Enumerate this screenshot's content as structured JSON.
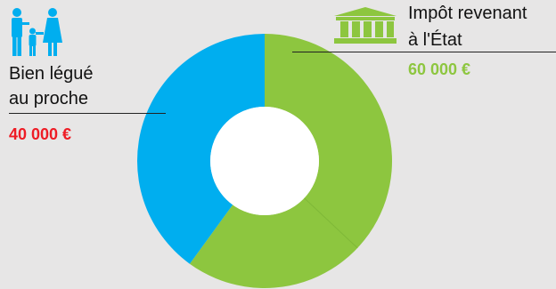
{
  "chart_data": {
    "type": "pie",
    "style": "donut",
    "title": "",
    "slices": [
      {
        "label": "Impôt revenant à l'État",
        "value": 60000,
        "display": "60 000 €",
        "color": "#8dc63f"
      },
      {
        "label": "Bien légué au proche",
        "value": 40000,
        "display": "40 000 €",
        "color": "#00aeef"
      }
    ],
    "labels": {
      "state": {
        "line1": "Impôt revenant",
        "line2": "à l'État",
        "value": "60 000 €",
        "value_color": "#8dc63f"
      },
      "relative": {
        "line1": "Bien légué",
        "line2": "au proche",
        "value": "40 000 €",
        "value_color": "#ee1c25"
      }
    }
  },
  "colors": {
    "background": "#e7e6e6",
    "state_green": "#8dc63f",
    "relative_blue": "#00aeef",
    "relative_value_red": "#ee1c25",
    "hole": "#ffffff"
  },
  "icons": {
    "state": "government-building-icon",
    "relative": "family-icon"
  }
}
